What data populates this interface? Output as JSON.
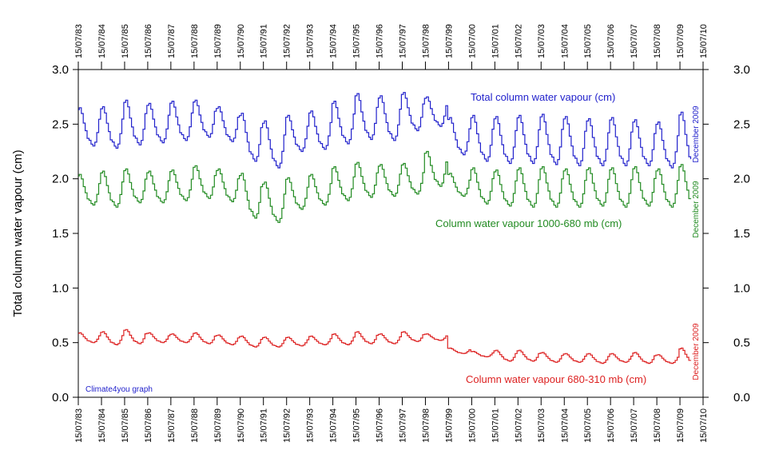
{
  "chart_data": {
    "type": "line",
    "ylabel": "Total column water vapour (cm)",
    "ylim": [
      0,
      3.0
    ],
    "yticks": [
      "0.0",
      "0.5",
      "1.0",
      "1.5",
      "2.0",
      "2.5",
      "3.0"
    ],
    "xlim": [
      "1983-07-15",
      "2010-07-15"
    ],
    "xticks": [
      "15/07/83",
      "15/07/84",
      "15/07/85",
      "15/07/86",
      "15/07/87",
      "15/07/88",
      "15/07/89",
      "15/07/90",
      "15/07/91",
      "15/07/92",
      "15/07/93",
      "15/07/94",
      "15/07/95",
      "15/07/96",
      "15/07/97",
      "15/07/98",
      "15/07/99",
      "15/07/00",
      "15/07/01",
      "15/07/02",
      "15/07/03",
      "15/07/04",
      "15/07/05",
      "15/07/06",
      "15/07/07",
      "15/07/08",
      "15/07/09",
      "15/07/10"
    ],
    "credit": "Climate4you graph",
    "series": [
      {
        "name": "Total column water vapour (cm)",
        "color": "#2222cc",
        "end_label": "December 2009",
        "peaks": [
          2.65,
          2.66,
          2.72,
          2.69,
          2.71,
          2.72,
          2.66,
          2.6,
          2.53,
          2.58,
          2.62,
          2.71,
          2.78,
          2.76,
          2.79,
          2.75,
          2.56,
          2.58,
          2.57,
          2.58,
          2.59,
          2.57,
          2.55,
          2.56,
          2.54,
          2.52,
          2.61
        ],
        "troughs": [
          2.3,
          2.28,
          2.31,
          2.33,
          2.35,
          2.38,
          2.34,
          2.16,
          2.1,
          2.25,
          2.27,
          2.32,
          2.36,
          2.35,
          2.44,
          2.48,
          2.22,
          2.16,
          2.14,
          2.14,
          2.13,
          2.12,
          2.12,
          2.12,
          2.12,
          2.1,
          2.1
        ],
        "last": 2.18
      },
      {
        "name": "Column water vapour 1000-680 mb (cm)",
        "color": "#228b22",
        "end_label": "December 2009",
        "peaks": [
          2.04,
          2.07,
          2.09,
          2.07,
          2.08,
          2.12,
          2.09,
          2.05,
          1.97,
          2.01,
          2.04,
          2.11,
          2.15,
          2.13,
          2.14,
          2.25,
          2.05,
          2.1,
          2.08,
          2.1,
          2.11,
          2.09,
          2.1,
          2.1,
          2.11,
          2.09,
          2.13
        ],
        "troughs": [
          1.76,
          1.74,
          1.78,
          1.78,
          1.8,
          1.82,
          1.79,
          1.64,
          1.6,
          1.72,
          1.76,
          1.8,
          1.83,
          1.84,
          1.86,
          1.93,
          1.84,
          1.77,
          1.75,
          1.74,
          1.74,
          1.74,
          1.75,
          1.74,
          1.75,
          1.74,
          1.74
        ],
        "last": 1.82
      },
      {
        "name": "Column water vapour 680-310 mb (cm)",
        "color": "#dd2222",
        "end_label": "December 2009",
        "peaks": [
          0.59,
          0.6,
          0.62,
          0.59,
          0.58,
          0.59,
          0.57,
          0.56,
          0.55,
          0.55,
          0.56,
          0.58,
          0.6,
          0.58,
          0.6,
          0.58,
          0.45,
          0.42,
          0.43,
          0.43,
          0.41,
          0.4,
          0.4,
          0.4,
          0.41,
          0.39,
          0.45
        ],
        "troughs": [
          0.5,
          0.48,
          0.49,
          0.5,
          0.5,
          0.49,
          0.48,
          0.46,
          0.46,
          0.47,
          0.48,
          0.48,
          0.49,
          0.49,
          0.51,
          0.52,
          0.4,
          0.37,
          0.33,
          0.33,
          0.32,
          0.32,
          0.31,
          0.32,
          0.31,
          0.31,
          0.31
        ],
        "last": 0.34
      }
    ]
  }
}
